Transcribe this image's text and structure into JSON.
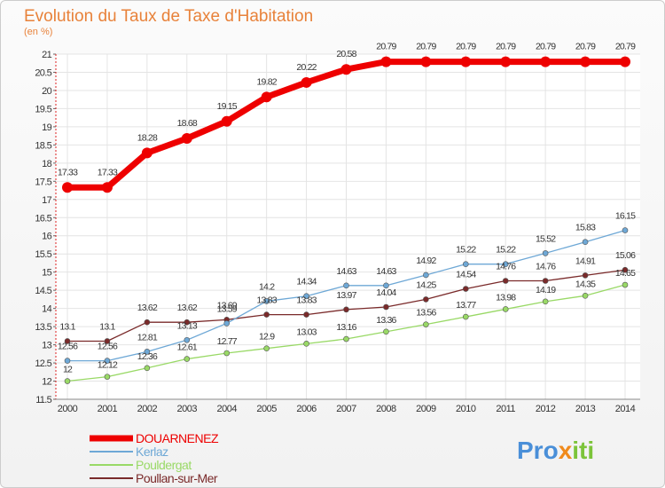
{
  "chart_data": {
    "type": "line",
    "title": "Evolution du Taux de Taxe d'Habitation",
    "subtitle": "(en %)",
    "x": [
      "2000",
      "2001",
      "2002",
      "2003",
      "2004",
      "2005",
      "2006",
      "2007",
      "2008",
      "2009",
      "2010",
      "2011",
      "2012",
      "2013",
      "2014"
    ],
    "ylim": [
      11.5,
      21
    ],
    "yticks": [
      "11.5",
      "12",
      "12.5",
      "13",
      "13.5",
      "14",
      "14.5",
      "15",
      "15.5",
      "16",
      "16.5",
      "17",
      "17.5",
      "18",
      "18.5",
      "19",
      "19.5",
      "20",
      "20.5",
      "21"
    ],
    "series": [
      {
        "name": "DOUARNENEZ",
        "color": "#ee0000",
        "values": [
          17.33,
          17.33,
          18.28,
          18.68,
          19.15,
          19.82,
          20.22,
          20.58,
          20.79,
          20.79,
          20.79,
          20.79,
          20.79,
          20.79,
          20.79
        ],
        "labels": [
          "17.33",
          "17.33",
          "18.28",
          "18.68",
          "19.15",
          "19.82",
          "20.22",
          "20.58",
          "20.79",
          "20.79",
          "20.79",
          "20.79",
          "20.79",
          "20.79",
          "20.79"
        ]
      },
      {
        "name": "Kerlaz",
        "color": "#6ea8d6",
        "values": [
          12.56,
          12.56,
          12.81,
          13.13,
          13.59,
          14.2,
          14.34,
          14.63,
          14.63,
          14.92,
          15.22,
          15.22,
          15.52,
          15.83,
          16.15
        ],
        "labels": [
          "12.56",
          "12.56",
          "12.81",
          "13.13",
          "13.59",
          "14.2",
          "14.34",
          "14.63",
          "14.63",
          "14.92",
          "15.22",
          "15.22",
          "15.52",
          "15.83",
          "16.15"
        ]
      },
      {
        "name": "Pouldergat",
        "color": "#99d966",
        "values": [
          12,
          12.12,
          12.36,
          12.61,
          12.77,
          12.9,
          13.03,
          13.16,
          13.36,
          13.56,
          13.77,
          13.98,
          14.19,
          14.35,
          14.65
        ],
        "labels": [
          "12",
          "12.12",
          "12.36",
          "12.61",
          "12.77",
          "12.9",
          "13.03",
          "13.16",
          "13.36",
          "13.56",
          "13.77",
          "13.98",
          "14.19",
          "14.35",
          "14.65"
        ]
      },
      {
        "name": "Poullan-sur-Mer",
        "color": "#7a2a2a",
        "values": [
          13.1,
          13.1,
          13.62,
          13.62,
          13.69,
          13.83,
          13.83,
          13.97,
          14.04,
          14.25,
          14.54,
          14.76,
          14.76,
          14.91,
          15.06
        ],
        "labels": [
          "13.1",
          "13.1",
          "13.62",
          "13.62",
          "13.69",
          "13.83",
          "13.83",
          "13.97",
          "14.04",
          "14.25",
          "14.54",
          "14.76",
          "14.76",
          "14.91",
          "15.06"
        ]
      }
    ],
    "legend": {
      "position": "bottom-left"
    }
  },
  "logo": {
    "parts": [
      "Pro",
      "x",
      "iti"
    ],
    "colors": [
      "#4a8fd8",
      "#f08a1c",
      "#7cc43a"
    ]
  }
}
